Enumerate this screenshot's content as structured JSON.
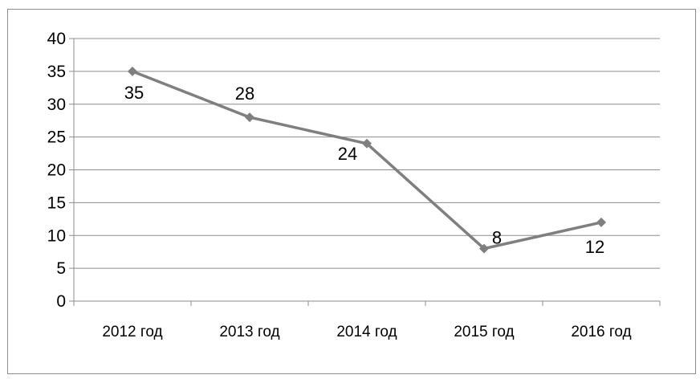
{
  "chart_data": {
    "type": "line",
    "title": "",
    "xlabel": "",
    "ylabel": "",
    "categories": [
      "2012 год",
      "2013 год",
      "2014 год",
      "2015 год",
      "2016 год"
    ],
    "series": [
      {
        "values": [
          35,
          28,
          24,
          8,
          12
        ],
        "data_labels": [
          "35",
          "28",
          "24",
          "8",
          "12"
        ],
        "color": "#7f7f7f",
        "marker": "diamond"
      }
    ],
    "ylim": [
      0,
      40
    ],
    "y_ticks": [
      0,
      5,
      10,
      15,
      20,
      25,
      30,
      35,
      40
    ],
    "y_tick_labels": [
      "0",
      "5",
      "10",
      "15",
      "20",
      "25",
      "30",
      "35",
      "40"
    ],
    "grid": true,
    "legend": "none",
    "colors": {
      "line": "#7f7f7f",
      "grid": "#8c8c8c",
      "frame": "#8c8c8c"
    }
  }
}
